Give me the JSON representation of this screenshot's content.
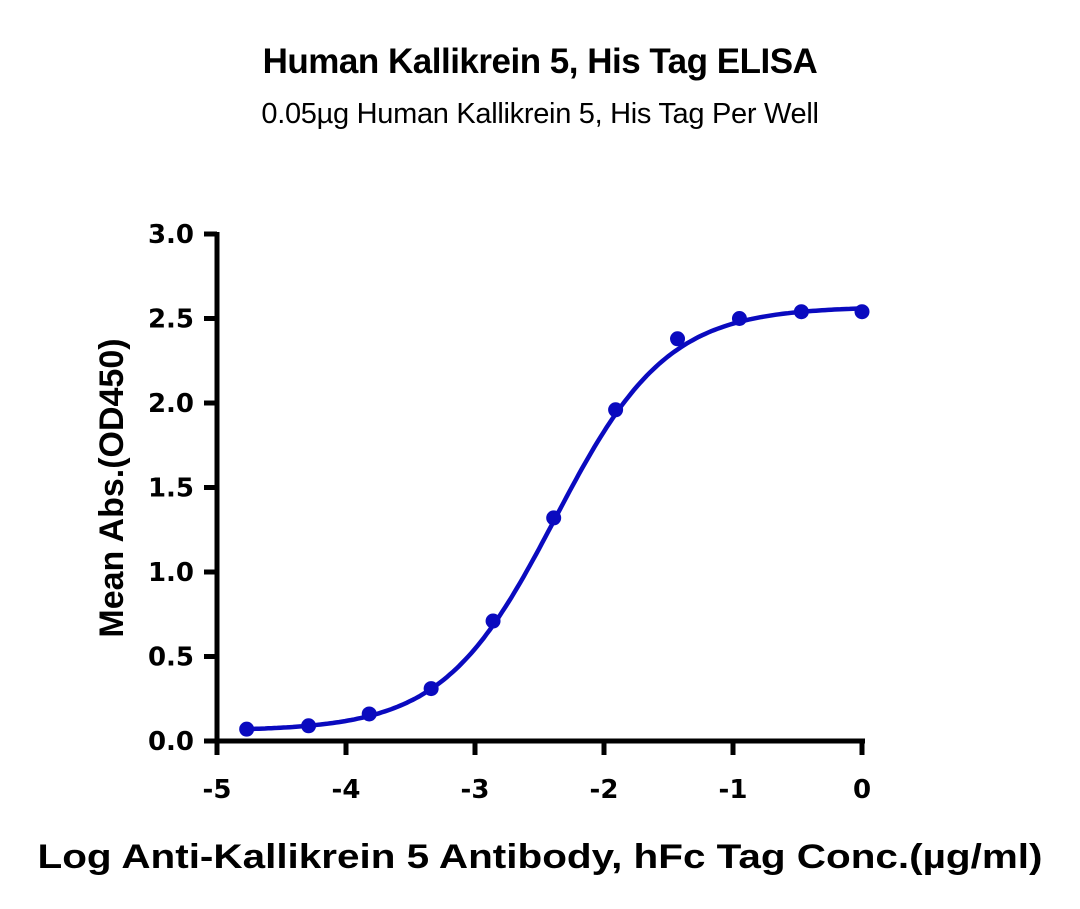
{
  "header": {
    "title": "Human Kallikrein 5, His Tag ELISA",
    "subtitle": "0.05µg Human Kallikrein 5, His Tag Per Well"
  },
  "axes": {
    "x_title": "Log Anti-Kallikrein 5 Antibody, hFc Tag Conc.(µg/ml)",
    "y_title": "Mean Abs.(OD450)",
    "x_ticks": [
      "-5",
      "-4",
      "-3",
      "-2",
      "-1",
      "0"
    ],
    "y_ticks": [
      "0.0",
      "0.5",
      "1.0",
      "1.5",
      "2.0",
      "2.5",
      "3.0"
    ]
  },
  "colors": {
    "series": "#0a0abf",
    "axis": "#000000"
  },
  "chart_data": {
    "type": "scatter",
    "title": "Human Kallikrein 5, His Tag ELISA",
    "subtitle": "0.05µg Human Kallikrein 5, His Tag Per Well",
    "xlabel": "Log Anti-Kallikrein 5 Antibody, hFc Tag Conc.(µg/ml)",
    "ylabel": "Mean Abs.(OD450)",
    "xlim": [
      -5,
      0
    ],
    "ylim": [
      0,
      3.0
    ],
    "x_ticks": [
      -5,
      -4,
      -3,
      -2,
      -1,
      0
    ],
    "y_ticks": [
      0.0,
      0.5,
      1.0,
      1.5,
      2.0,
      2.5,
      3.0
    ],
    "grid": false,
    "legend": null,
    "series": [
      {
        "name": "Anti-Kallikrein 5 Antibody, hFc Tag",
        "x": [
          -4.77,
          -4.29,
          -3.82,
          -3.34,
          -2.86,
          -2.39,
          -1.91,
          -1.43,
          -0.95,
          -0.47,
          0.0
        ],
        "y": [
          0.07,
          0.09,
          0.16,
          0.31,
          0.71,
          1.32,
          1.96,
          2.38,
          2.5,
          2.54,
          2.54
        ],
        "fit": {
          "model": "4PL",
          "bottom": 0.06,
          "top": 2.57,
          "log_ec50": -2.38,
          "hill_slope": 1.0
        }
      }
    ]
  }
}
